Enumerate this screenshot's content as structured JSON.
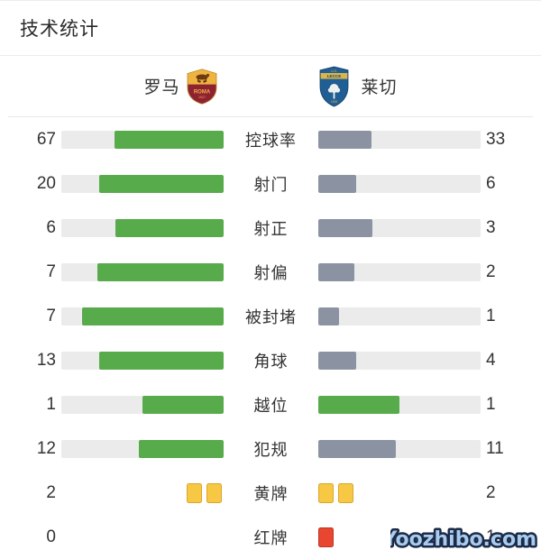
{
  "title": "技术统计",
  "header": {
    "home_team": {
      "name": "罗马",
      "crest": "roma-crest"
    },
    "away_team": {
      "name": "莱切",
      "crest": "lecce-crest"
    }
  },
  "colors": {
    "home_bar": "#57ab4a",
    "away_bar": "#8b93a3",
    "bar_track": "#ebebeb",
    "yellow_card": "#f6c844",
    "red_card": "#e84631",
    "text": "#333333"
  },
  "icons": {
    "roma-crest-icon": "gold and maroon shield with wolf and ROMA text",
    "lecce-crest-icon": "blue shield with gold LECCE band and white tree",
    "yellow-card-icon": "yellow rounded rectangle",
    "red-card-icon": "red rounded rectangle"
  },
  "chart_data": {
    "type": "bar",
    "orientation": "horizontal-paired",
    "series": [
      {
        "name": "罗马"
      },
      {
        "name": "莱切"
      }
    ],
    "rows": [
      {
        "label": "控球率",
        "home": 67,
        "away": 33,
        "type": "bar",
        "away_color": "gray"
      },
      {
        "label": "射门",
        "home": 20,
        "away": 6,
        "type": "bar",
        "away_color": "gray"
      },
      {
        "label": "射正",
        "home": 6,
        "away": 3,
        "type": "bar",
        "away_color": "gray"
      },
      {
        "label": "射偏",
        "home": 7,
        "away": 2,
        "type": "bar",
        "away_color": "gray"
      },
      {
        "label": "被封堵",
        "home": 7,
        "away": 1,
        "type": "bar",
        "away_color": "gray"
      },
      {
        "label": "角球",
        "home": 13,
        "away": 4,
        "type": "bar",
        "away_color": "gray"
      },
      {
        "label": "越位",
        "home": 1,
        "away": 1,
        "type": "bar",
        "away_color": "green"
      },
      {
        "label": "犯规",
        "home": 12,
        "away": 11,
        "type": "bar",
        "away_color": "gray"
      },
      {
        "label": "黄牌",
        "home": 2,
        "away": 2,
        "type": "cards",
        "card": "yellow"
      },
      {
        "label": "红牌",
        "home": 0,
        "away": 1,
        "type": "cards",
        "card": "red"
      }
    ]
  },
  "watermark": "Yoozhibo.com"
}
